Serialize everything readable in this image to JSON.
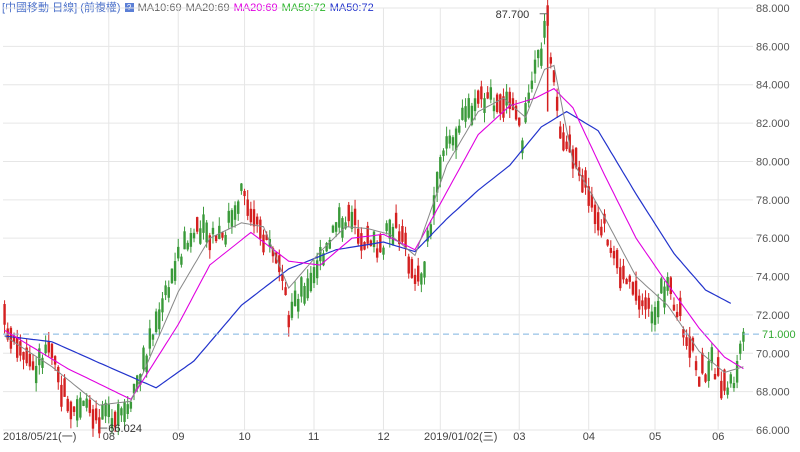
{
  "legend": {
    "title": "[中國移動 日線] (前複權)",
    "q_icon": "?",
    "ma10": "MA10:69",
    "ma20": "MA20:69",
    "ma20b": "MA20:69",
    "ma50a": "MA50:72",
    "ma50b": "MA50:72"
  },
  "colors": {
    "up": "#3a9a3a",
    "down": "#d42020",
    "ma10": "#888888",
    "ma20": "#e000e0",
    "ma50": "#2233cc",
    "current_line": "#7fb3e0",
    "grid": "#e6e6e6"
  },
  "chart_data": {
    "type": "candlestick",
    "title": "[中國移動 日線] (前複權)",
    "ylim": [
      66,
      88
    ],
    "yticks": [
      "88.000",
      "86.000",
      "84.000",
      "82.000",
      "80.000",
      "78.000",
      "76.000",
      "74.000",
      "72.000",
      "70.000",
      "68.000",
      "66.000"
    ],
    "ytick_values": [
      88,
      86,
      84,
      82,
      80,
      78,
      76,
      74,
      72,
      70,
      68,
      66
    ],
    "xticks": [
      "2018/05/21(一)",
      "08",
      "09",
      "10",
      "11",
      "12",
      "2019/01/02(三)",
      "03",
      "04",
      "05",
      "06"
    ],
    "max_label": "87.700",
    "min_label": "66.024",
    "current_label": "71.000",
    "current_value": 71.0,
    "price_path": [
      [
        0,
        71.6
      ],
      [
        5,
        70.6
      ],
      [
        10,
        69.2
      ],
      [
        14,
        70.3
      ],
      [
        18,
        68.2
      ],
      [
        22,
        67.0
      ],
      [
        26,
        67.8
      ],
      [
        30,
        66.3
      ],
      [
        34,
        66.9
      ],
      [
        38,
        67.2
      ],
      [
        40,
        67.8
      ],
      [
        45,
        69.8
      ],
      [
        50,
        72.8
      ],
      [
        55,
        74.9
      ],
      [
        60,
        76.2
      ],
      [
        65,
        76.3
      ],
      [
        70,
        76.4
      ],
      [
        75,
        78.5
      ],
      [
        80,
        76.5
      ],
      [
        85,
        75.6
      ],
      [
        90,
        72.0
      ],
      [
        94,
        73.0
      ],
      [
        98,
        74.3
      ],
      [
        103,
        76.1
      ],
      [
        108,
        77.2
      ],
      [
        112,
        76.6
      ],
      [
        116,
        75.6
      ],
      [
        120,
        75.8
      ],
      [
        124,
        76.9
      ],
      [
        128,
        75.0
      ],
      [
        132,
        73.6
      ],
      [
        136,
        77.8
      ],
      [
        140,
        81.0
      ],
      [
        145,
        82.0
      ],
      [
        150,
        83.5
      ],
      [
        155,
        83.3
      ],
      [
        160,
        82.9
      ],
      [
        164,
        81.2
      ],
      [
        168,
        84.5
      ],
      [
        172,
        87.2
      ],
      [
        175,
        82.5
      ],
      [
        180,
        80.2
      ],
      [
        185,
        78.5
      ],
      [
        190,
        76.5
      ],
      [
        195,
        74.3
      ],
      [
        200,
        73.0
      ],
      [
        205,
        72.2
      ],
      [
        210,
        73.5
      ],
      [
        215,
        71.5
      ],
      [
        220,
        69.0
      ],
      [
        224,
        69.5
      ],
      [
        228,
        68.2
      ],
      [
        231,
        68.6
      ],
      [
        233,
        70.1
      ],
      [
        234,
        71.0
      ]
    ],
    "ma10_path": [
      [
        0,
        70.9
      ],
      [
        15,
        69.3
      ],
      [
        30,
        67.3
      ],
      [
        40,
        67.5
      ],
      [
        55,
        73.2
      ],
      [
        65,
        76.0
      ],
      [
        75,
        76.8
      ],
      [
        82,
        76.6
      ],
      [
        90,
        73.4
      ],
      [
        100,
        75.3
      ],
      [
        108,
        76.6
      ],
      [
        115,
        76.5
      ],
      [
        122,
        76.2
      ],
      [
        130,
        75.1
      ],
      [
        140,
        79.8
      ],
      [
        150,
        82.6
      ],
      [
        158,
        83.3
      ],
      [
        165,
        82.3
      ],
      [
        171,
        84.8
      ],
      [
        174,
        85.0
      ],
      [
        180,
        80.0
      ],
      [
        190,
        77.1
      ],
      [
        200,
        74.0
      ],
      [
        210,
        72.5
      ],
      [
        220,
        70.1
      ],
      [
        228,
        69.0
      ],
      [
        234,
        69.3
      ]
    ],
    "ma20_path": [
      [
        0,
        71.2
      ],
      [
        20,
        69.2
      ],
      [
        40,
        67.6
      ],
      [
        55,
        71.5
      ],
      [
        65,
        74.6
      ],
      [
        78,
        76.3
      ],
      [
        90,
        74.8
      ],
      [
        100,
        74.6
      ],
      [
        110,
        76.0
      ],
      [
        120,
        76.2
      ],
      [
        130,
        75.4
      ],
      [
        140,
        78.4
      ],
      [
        150,
        81.4
      ],
      [
        160,
        82.9
      ],
      [
        168,
        83.3
      ],
      [
        174,
        83.8
      ],
      [
        180,
        82.8
      ],
      [
        190,
        79.3
      ],
      [
        200,
        76.0
      ],
      [
        210,
        73.6
      ],
      [
        220,
        71.3
      ],
      [
        228,
        69.8
      ],
      [
        234,
        69.2
      ]
    ],
    "ma50_path": [
      [
        0,
        70.9
      ],
      [
        15,
        70.6
      ],
      [
        30,
        69.5
      ],
      [
        48,
        68.2
      ],
      [
        60,
        69.6
      ],
      [
        75,
        72.5
      ],
      [
        90,
        74.4
      ],
      [
        105,
        75.4
      ],
      [
        120,
        75.8
      ],
      [
        130,
        75.3
      ],
      [
        140,
        77.0
      ],
      [
        150,
        78.5
      ],
      [
        160,
        79.8
      ],
      [
        170,
        81.8
      ],
      [
        178,
        82.6
      ],
      [
        188,
        81.6
      ],
      [
        200,
        78.3
      ],
      [
        212,
        75.2
      ],
      [
        222,
        73.3
      ],
      [
        230,
        72.6
      ]
    ],
    "grid": true,
    "legend_position": "top-left"
  }
}
